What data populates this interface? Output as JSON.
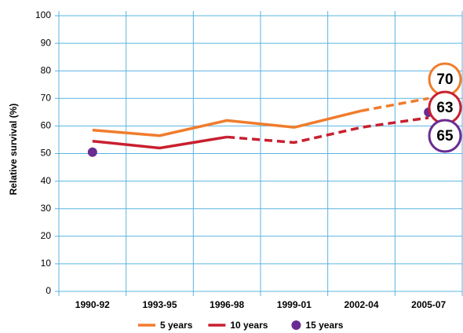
{
  "chart_data": {
    "type": "line",
    "y_label": "Relative survival (%)",
    "categories": [
      "1990-92",
      "1993-95",
      "1996-98",
      "1999-01",
      "2002-04",
      "2005-07"
    ],
    "series": [
      {
        "name": "5 years",
        "color": "#f07c2c",
        "values": [
          58.5,
          56.5,
          62,
          59.5,
          65.5,
          70
        ],
        "dash_from": 4
      },
      {
        "name": "10 years",
        "color": "#c8202f",
        "values": [
          54.5,
          52,
          56,
          54,
          59.5,
          63
        ],
        "dash_from": 2
      },
      {
        "name": "15 years",
        "color": "#6a2c91",
        "values": [
          50.5,
          null,
          null,
          null,
          null,
          65
        ],
        "markers_only": true
      }
    ],
    "ylim": [
      0,
      100
    ],
    "yticks": [
      0,
      10,
      20,
      30,
      40,
      50,
      60,
      70,
      80,
      90,
      100
    ],
    "grid": true
  }
}
